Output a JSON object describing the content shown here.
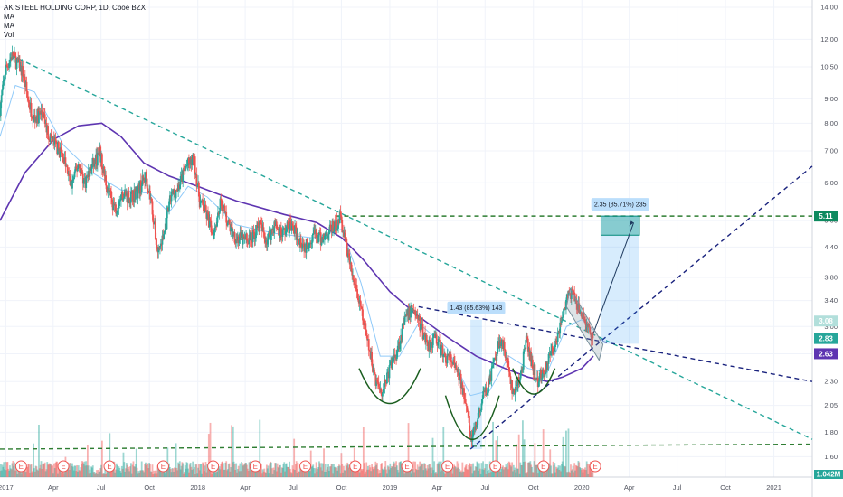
{
  "legend": {
    "title": "AK STEEL HOLDING CORP, 1D, Cboe BZX",
    "ma1": "MA",
    "ma2": "MA",
    "vol": "Vol"
  },
  "chart_data": {
    "type": "candlestick",
    "title": "AK STEEL HOLDING CORP, 1D, Cboe BZX",
    "y_scale": "log",
    "ylim": [
      1.45,
      14.0
    ],
    "xlim": [
      2016.97,
      2021.2
    ],
    "y_ticks": [
      "14.00",
      "12.00",
      "10.50",
      "9.00",
      "8.00",
      "7.00",
      "6.00",
      "5.00",
      "4.40",
      "3.80",
      "3.40",
      "3.00",
      "2.63",
      "2.30",
      "2.05",
      "1.80",
      "1.60"
    ],
    "x_ticks": [
      {
        "label": "2017",
        "t": 2017.0
      },
      {
        "label": "Apr",
        "t": 2017.247
      },
      {
        "label": "Jul",
        "t": 2017.496
      },
      {
        "label": "Oct",
        "t": 2017.748
      },
      {
        "label": "2018",
        "t": 2018.0
      },
      {
        "label": "Apr",
        "t": 2018.247
      },
      {
        "label": "Jul",
        "t": 2018.496
      },
      {
        "label": "Oct",
        "t": 2018.748
      },
      {
        "label": "2019",
        "t": 2019.0
      },
      {
        "label": "Apr",
        "t": 2019.247
      },
      {
        "label": "Jul",
        "t": 2019.496
      },
      {
        "label": "Oct",
        "t": 2019.748
      },
      {
        "label": "2020",
        "t": 2020.0
      },
      {
        "label": "Apr",
        "t": 2020.247
      },
      {
        "label": "Jul",
        "t": 2020.496
      },
      {
        "label": "Oct",
        "t": 2020.748
      },
      {
        "label": "2021",
        "t": 2021.0
      }
    ],
    "price_path": [
      [
        2016.97,
        8.6
      ],
      [
        2017.0,
        10.4
      ],
      [
        2017.03,
        11.1
      ],
      [
        2017.06,
        10.7
      ],
      [
        2017.09,
        10.2
      ],
      [
        2017.12,
        8.8
      ],
      [
        2017.15,
        8.2
      ],
      [
        2017.19,
        8.4
      ],
      [
        2017.22,
        7.6
      ],
      [
        2017.26,
        7.2
      ],
      [
        2017.3,
        6.8
      ],
      [
        2017.34,
        5.9
      ],
      [
        2017.38,
        6.6
      ],
      [
        2017.41,
        6.0
      ],
      [
        2017.45,
        6.5
      ],
      [
        2017.49,
        6.9
      ],
      [
        2017.53,
        5.8
      ],
      [
        2017.57,
        5.3
      ],
      [
        2017.61,
        5.7
      ],
      [
        2017.65,
        5.6
      ],
      [
        2017.69,
        5.8
      ],
      [
        2017.73,
        6.2
      ],
      [
        2017.76,
        5.4
      ],
      [
        2017.79,
        4.3
      ],
      [
        2017.82,
        4.6
      ],
      [
        2017.86,
        5.6
      ],
      [
        2017.9,
        5.9
      ],
      [
        2017.94,
        6.5
      ],
      [
        2017.98,
        6.7
      ],
      [
        2018.01,
        5.5
      ],
      [
        2018.04,
        5.2
      ],
      [
        2018.08,
        4.7
      ],
      [
        2018.12,
        5.5
      ],
      [
        2018.16,
        4.9
      ],
      [
        2018.2,
        4.6
      ],
      [
        2018.24,
        4.55
      ],
      [
        2018.28,
        4.6
      ],
      [
        2018.32,
        4.9
      ],
      [
        2018.36,
        4.55
      ],
      [
        2018.4,
        4.9
      ],
      [
        2018.44,
        4.7
      ],
      [
        2018.48,
        4.9
      ],
      [
        2018.52,
        4.65
      ],
      [
        2018.56,
        4.4
      ],
      [
        2018.6,
        4.7
      ],
      [
        2018.64,
        4.55
      ],
      [
        2018.68,
        4.75
      ],
      [
        2018.72,
        4.9
      ],
      [
        2018.74,
        5.1
      ],
      [
        2018.77,
        4.5
      ],
      [
        2018.8,
        3.9
      ],
      [
        2018.83,
        3.5
      ],
      [
        2018.86,
        3.1
      ],
      [
        2018.89,
        2.7
      ],
      [
        2018.93,
        2.3
      ],
      [
        2018.96,
        2.2
      ],
      [
        2019.0,
        2.45
      ],
      [
        2019.04,
        2.7
      ],
      [
        2019.08,
        3.1
      ],
      [
        2019.12,
        3.3
      ],
      [
        2019.16,
        3.0
      ],
      [
        2019.2,
        2.75
      ],
      [
        2019.24,
        2.85
      ],
      [
        2019.28,
        2.6
      ],
      [
        2019.32,
        2.55
      ],
      [
        2019.36,
        2.35
      ],
      [
        2019.4,
        2.1
      ],
      [
        2019.42,
        1.72
      ],
      [
        2019.45,
        1.85
      ],
      [
        2019.48,
        2.1
      ],
      [
        2019.51,
        2.25
      ],
      [
        2019.55,
        2.55
      ],
      [
        2019.58,
        2.85
      ],
      [
        2019.61,
        2.55
      ],
      [
        2019.64,
        2.15
      ],
      [
        2019.68,
        2.35
      ],
      [
        2019.71,
        2.8
      ],
      [
        2019.74,
        2.5
      ],
      [
        2019.77,
        2.3
      ],
      [
        2019.81,
        2.45
      ],
      [
        2019.85,
        2.7
      ],
      [
        2019.88,
        2.95
      ],
      [
        2019.91,
        3.3
      ],
      [
        2019.94,
        3.55
      ],
      [
        2019.97,
        3.35
      ],
      [
        2020.0,
        3.15
      ],
      [
        2020.03,
        3.0
      ],
      [
        2020.06,
        2.83
      ]
    ],
    "ma_long_path": [
      [
        2016.97,
        5.0
      ],
      [
        2017.1,
        6.3
      ],
      [
        2017.25,
        7.4
      ],
      [
        2017.38,
        7.9
      ],
      [
        2017.5,
        8.0
      ],
      [
        2017.6,
        7.5
      ],
      [
        2017.72,
        6.6
      ],
      [
        2017.85,
        6.2
      ],
      [
        2018.0,
        5.9
      ],
      [
        2018.2,
        5.5
      ],
      [
        2018.45,
        5.15
      ],
      [
        2018.62,
        4.95
      ],
      [
        2018.75,
        4.6
      ],
      [
        2018.86,
        4.15
      ],
      [
        2019.0,
        3.55
      ],
      [
        2019.15,
        3.15
      ],
      [
        2019.3,
        2.85
      ],
      [
        2019.45,
        2.6
      ],
      [
        2019.6,
        2.45
      ],
      [
        2019.72,
        2.35
      ],
      [
        2019.82,
        2.3
      ],
      [
        2019.9,
        2.35
      ],
      [
        2020.0,
        2.45
      ],
      [
        2020.06,
        2.6
      ]
    ],
    "ma_short_path": [
      [
        2016.97,
        7.5
      ],
      [
        2017.05,
        9.6
      ],
      [
        2017.15,
        9.3
      ],
      [
        2017.3,
        7.2
      ],
      [
        2017.45,
        6.3
      ],
      [
        2017.6,
        5.8
      ],
      [
        2017.75,
        5.7
      ],
      [
        2017.85,
        5.2
      ],
      [
        2017.95,
        5.9
      ],
      [
        2018.05,
        5.6
      ],
      [
        2018.2,
        4.9
      ],
      [
        2018.4,
        4.7
      ],
      [
        2018.6,
        4.6
      ],
      [
        2018.75,
        4.8
      ],
      [
        2018.85,
        3.7
      ],
      [
        2018.95,
        2.6
      ],
      [
        2019.05,
        2.6
      ],
      [
        2019.15,
        3.05
      ],
      [
        2019.3,
        2.7
      ],
      [
        2019.42,
        2.15
      ],
      [
        2019.52,
        2.2
      ],
      [
        2019.62,
        2.6
      ],
      [
        2019.72,
        2.45
      ],
      [
        2019.82,
        2.4
      ],
      [
        2019.92,
        3.0
      ],
      [
        2020.0,
        3.1
      ],
      [
        2020.06,
        2.95
      ]
    ],
    "trendlines": [
      {
        "kind": "teal-dashed",
        "from": [
          2017.03,
          11.1
        ],
        "to": [
          2021.2,
          1.74
        ]
      },
      {
        "kind": "green-dashed",
        "from": [
          2016.97,
          1.66
        ],
        "to": [
          2021.2,
          1.7
        ]
      },
      {
        "kind": "green-dashed",
        "from": [
          2018.72,
          5.11
        ],
        "to": [
          2021.2,
          5.11
        ]
      },
      {
        "kind": "navy-dashed",
        "from": [
          2019.15,
          3.3
        ],
        "to": [
          2021.2,
          2.3
        ]
      },
      {
        "kind": "navy-dashed",
        "from": [
          2019.42,
          1.66
        ],
        "to": [
          2021.2,
          6.5
        ]
      }
    ],
    "measure_boxes": [
      {
        "label": "1.43 (85.63%) 143",
        "from": [
          2019.42,
          1.66
        ],
        "to": [
          2019.48,
          3.1
        ]
      },
      {
        "label": "2.35 (85.71%) 235",
        "from": [
          2020.1,
          2.76
        ],
        "to": [
          2020.3,
          5.11
        ]
      }
    ],
    "price_tags": [
      {
        "value": "5.11",
        "price": 5.11,
        "color": "#0e8a5f"
      },
      {
        "value": "3.08",
        "price": 3.08,
        "color": "#b2dfdb"
      },
      {
        "value": "2.83",
        "price": 2.83,
        "color": "#26a69a"
      },
      {
        "value": "2.63",
        "price": 2.63,
        "color": "#5e35b1"
      }
    ],
    "volume_label": "1.042M",
    "earnings_marks": [
      2017.08,
      2017.3,
      2017.54,
      2017.82,
      2018.08,
      2018.3,
      2018.56,
      2018.82,
      2019.09,
      2019.3,
      2019.55,
      2019.8,
      2020.07
    ],
    "earnings_label": "E"
  }
}
